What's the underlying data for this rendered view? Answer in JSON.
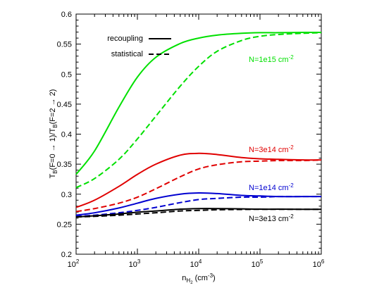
{
  "chart_data": {
    "type": "line",
    "xscale": "log",
    "xlim": [
      100,
      1000000
    ],
    "ylim": [
      0.2,
      0.6
    ],
    "x_ticks": [
      {
        "value": 100,
        "base": "10",
        "exp": "2"
      },
      {
        "value": 1000,
        "base": "10",
        "exp": "3"
      },
      {
        "value": 10000,
        "base": "10",
        "exp": "4"
      },
      {
        "value": 100000,
        "base": "10",
        "exp": "5"
      },
      {
        "value": 1000000,
        "base": "10",
        "exp": "6"
      }
    ],
    "y_ticks": [
      "0.2",
      "0.25",
      "0.3",
      "0.35",
      "0.4",
      "0.45",
      "0.5",
      "0.55",
      "0.6"
    ],
    "xlabel": {
      "main": "n",
      "sub": "H",
      "subsub": "2",
      "unit_open": " (cm",
      "unit_exp": "-3",
      "unit_close": ")"
    },
    "ylabel": {
      "t1": "T",
      "s1": "B",
      "t2": "(F=0 → 1)/T",
      "s2": "B",
      "t3": "(F=2 → 2)"
    },
    "legend": {
      "placement": "top-left",
      "entries": [
        {
          "label": "recoupling",
          "style": "solid"
        },
        {
          "label": "statistical",
          "style": "dashed"
        }
      ]
    },
    "grid": false,
    "series": [
      {
        "label_base": "N=1e15 cm",
        "label_exp": "-2",
        "color": "#00e000",
        "x": [
          100,
          200,
          500,
          1000,
          2000,
          5000,
          10000,
          20000,
          50000,
          100000,
          200000,
          500000,
          1000000
        ],
        "recoupling": [
          0.333,
          0.372,
          0.445,
          0.495,
          0.528,
          0.551,
          0.56,
          0.565,
          0.568,
          0.569,
          0.569,
          0.5695,
          0.5695
        ],
        "statistical": [
          0.311,
          0.326,
          0.358,
          0.392,
          0.43,
          0.48,
          0.513,
          0.538,
          0.556,
          0.563,
          0.566,
          0.568,
          0.569
        ]
      },
      {
        "label_base": "N=3e14 cm",
        "label_exp": "-2",
        "color": "#e00000",
        "x": [
          100,
          200,
          500,
          1000,
          2000,
          5000,
          10000,
          20000,
          50000,
          100000,
          200000,
          500000,
          1000000
        ],
        "recoupling": [
          0.278,
          0.29,
          0.313,
          0.333,
          0.35,
          0.365,
          0.368,
          0.366,
          0.361,
          0.359,
          0.358,
          0.357,
          0.357
        ],
        "statistical": [
          0.271,
          0.276,
          0.285,
          0.295,
          0.309,
          0.329,
          0.342,
          0.349,
          0.354,
          0.355,
          0.356,
          0.356,
          0.357
        ]
      },
      {
        "label_base": "N=1e14 cm",
        "label_exp": "-2",
        "color": "#0000d0",
        "x": [
          100,
          200,
          500,
          1000,
          2000,
          5000,
          10000,
          20000,
          50000,
          100000,
          200000,
          500000,
          1000000
        ],
        "recoupling": [
          0.265,
          0.269,
          0.277,
          0.285,
          0.293,
          0.3,
          0.302,
          0.301,
          0.298,
          0.297,
          0.296,
          0.296,
          0.296
        ],
        "statistical": [
          0.263,
          0.265,
          0.269,
          0.273,
          0.278,
          0.286,
          0.291,
          0.293,
          0.295,
          0.295,
          0.296,
          0.296,
          0.296
        ]
      },
      {
        "label_base": "N=3e13 cm",
        "label_exp": "-2",
        "color": "#000000",
        "x": [
          100,
          200,
          500,
          1000,
          2000,
          5000,
          10000,
          20000,
          50000,
          100000,
          200000,
          500000,
          1000000
        ],
        "recoupling": [
          0.262,
          0.264,
          0.267,
          0.27,
          0.272,
          0.275,
          0.276,
          0.276,
          0.2755,
          0.275,
          0.275,
          0.2748,
          0.2748
        ],
        "statistical": [
          0.262,
          0.263,
          0.265,
          0.267,
          0.269,
          0.272,
          0.273,
          0.274,
          0.2745,
          0.2748,
          0.2748,
          0.2748,
          0.2748
        ]
      }
    ]
  }
}
